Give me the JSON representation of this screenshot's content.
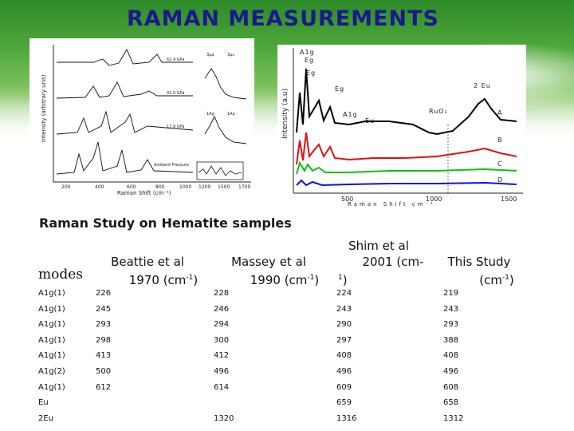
{
  "title": "RAMAN MEASUREMENTS",
  "fig_left": {
    "ylabel": "Intensity (arbitrary unit)",
    "xlabel": "Raman Shift (cm⁻¹)",
    "xticks": [
      "200",
      "400",
      "600",
      "800",
      "1000",
      "1200",
      "1500",
      "1700"
    ],
    "curve_labels": [
      "62.4 GPa",
      "41.0 GPa",
      "17.9 GPa",
      "Ambient Pressure"
    ],
    "inset_labels": [
      "3μa",
      "3μc",
      "1Ag",
      "1Aa"
    ]
  },
  "fig_right": {
    "ylabel": "Intensity (a.u)",
    "xlabel": "Raman Shift cm⁻¹",
    "xticks": [
      "500",
      "1000",
      "1500"
    ],
    "peak_labels": [
      "A1g",
      "Eg",
      "Eg",
      "Eg",
      "A1g",
      "Eu",
      "2 Eu",
      "RuO₂"
    ],
    "curve_labels": [
      "A",
      "B",
      "C",
      "D"
    ],
    "colors": {
      "A": "#000000",
      "B": "#e01010",
      "C": "#10c010",
      "D": "#1010e0"
    }
  },
  "subtitle": "Raman Study on Hematite samples",
  "table": {
    "modes_label": "modes",
    "headers": [
      {
        "name": "Beattie et al",
        "year": "1970 (cm",
        "unit": "-1",
        "close": ")"
      },
      {
        "name": "Massey et al",
        "year": "1990 (cm",
        "unit": "-1",
        "close": ")"
      },
      {
        "name": "Shim et al",
        "year": "2001 (cm-",
        "unit": "1",
        "close": ")"
      },
      {
        "name": "This Study",
        "year": "(cm",
        "unit": "-1",
        "close": ")"
      }
    ],
    "rows": [
      [
        "A1g(1)",
        "226",
        "228",
        "224",
        "219"
      ],
      [
        "A1g(1)",
        "245",
        "246",
        "243",
        "243"
      ],
      [
        "A1g(1)",
        "293",
        "294",
        "290",
        "293"
      ],
      [
        "A1g(1)",
        "298",
        "300",
        "297",
        "388"
      ],
      [
        "A1g(1)",
        "413",
        "412",
        "408",
        "408"
      ],
      [
        "A1g(2)",
        "500",
        "496",
        "496",
        "496"
      ],
      [
        "A1g(1)",
        "612",
        "614",
        "609",
        "608"
      ],
      [
        "Eu",
        "",
        "",
        "659",
        "658"
      ],
      [
        "2Eu",
        "",
        "1320",
        "1316",
        "1312"
      ]
    ]
  }
}
